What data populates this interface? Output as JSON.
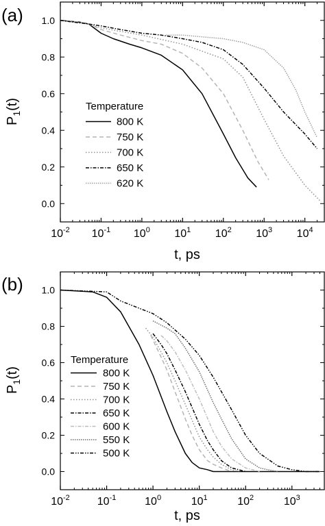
{
  "chart_data": [
    {
      "type": "line",
      "panel_label": "(a)",
      "xlabel": "t, ps",
      "ylabel_main": "P",
      "ylabel_sub": "1",
      "ylabel_tail": "(t)",
      "x_scale": "log",
      "xlim": [
        0.01,
        30000
      ],
      "ylim": [
        -0.1,
        1.1
      ],
      "x_ticks": [
        {
          "value": 0.01,
          "base": "10",
          "exp": "-2"
        },
        {
          "value": 0.1,
          "base": "10",
          "exp": "-1"
        },
        {
          "value": 1,
          "base": "10",
          "exp": "0"
        },
        {
          "value": 10,
          "base": "10",
          "exp": "1"
        },
        {
          "value": 100,
          "base": "10",
          "exp": "2"
        },
        {
          "value": 1000,
          "base": "10",
          "exp": "3"
        },
        {
          "value": 10000,
          "base": "10",
          "exp": "4"
        }
      ],
      "y_ticks": [
        {
          "value": 0.0,
          "label": "0.0"
        },
        {
          "value": 0.2,
          "label": "0.2"
        },
        {
          "value": 0.4,
          "label": "0.4"
        },
        {
          "value": 0.6,
          "label": "0.6"
        },
        {
          "value": 0.8,
          "label": "0.8"
        },
        {
          "value": 1.0,
          "label": "1.0"
        }
      ],
      "grid": false,
      "legend_title": "Temperature",
      "legend_position": "center-left",
      "series": [
        {
          "name": "800 K",
          "color": "#000000",
          "dash": "solid",
          "x": [
            0.01,
            0.03,
            0.05,
            0.1,
            0.2,
            0.5,
            1,
            3,
            10,
            30,
            100,
            200,
            400,
            650
          ],
          "y": [
            1.0,
            0.99,
            0.98,
            0.93,
            0.9,
            0.87,
            0.85,
            0.81,
            0.73,
            0.6,
            0.38,
            0.25,
            0.14,
            0.09
          ]
        },
        {
          "name": "750 K",
          "color": "#b4b4b4",
          "dash": "dash",
          "x": [
            0.01,
            0.03,
            0.05,
            0.1,
            0.3,
            1,
            3,
            10,
            30,
            100,
            300,
            700,
            1300
          ],
          "y": [
            1.0,
            0.99,
            0.98,
            0.95,
            0.92,
            0.89,
            0.87,
            0.82,
            0.74,
            0.6,
            0.4,
            0.23,
            0.13
          ]
        },
        {
          "name": "700 K",
          "color": "#909090",
          "dash": "dot",
          "x": [
            0.01,
            0.05,
            0.1,
            0.3,
            1,
            10,
            100,
            300,
            1000,
            3000,
            10000,
            25000
          ],
          "y": [
            1.0,
            0.98,
            0.96,
            0.94,
            0.92,
            0.87,
            0.79,
            0.69,
            0.46,
            0.26,
            0.1,
            0.01
          ]
        },
        {
          "name": "650 K",
          "color": "#000000",
          "dash": "dashdot",
          "x": [
            0.01,
            0.05,
            0.1,
            0.3,
            1,
            3,
            10,
            30,
            100,
            300,
            1000,
            3000,
            10000,
            20000
          ],
          "y": [
            1.0,
            0.98,
            0.97,
            0.95,
            0.93,
            0.92,
            0.9,
            0.88,
            0.84,
            0.76,
            0.63,
            0.5,
            0.38,
            0.3
          ]
        },
        {
          "name": "620 K",
          "color": "#a0a0a0",
          "dash": "shortdot",
          "x": [
            4,
            10,
            30,
            100,
            300,
            1000,
            3000,
            6000,
            10000,
            20000
          ],
          "y": [
            0.92,
            0.92,
            0.91,
            0.9,
            0.88,
            0.84,
            0.74,
            0.62,
            0.5,
            0.36
          ]
        }
      ]
    },
    {
      "type": "line",
      "panel_label": "(b)",
      "xlabel": "t, ps",
      "ylabel_main": "P",
      "ylabel_sub": "1",
      "ylabel_tail": "(t)",
      "x_scale": "log",
      "xlim": [
        0.01,
        5000
      ],
      "ylim": [
        -0.1,
        1.1
      ],
      "x_ticks": [
        {
          "value": 0.01,
          "base": "10",
          "exp": "-2"
        },
        {
          "value": 0.1,
          "base": "10",
          "exp": "-1"
        },
        {
          "value": 1,
          "base": "10",
          "exp": "0"
        },
        {
          "value": 10,
          "base": "10",
          "exp": "1"
        },
        {
          "value": 100,
          "base": "10",
          "exp": "2"
        },
        {
          "value": 1000,
          "base": "10",
          "exp": "3"
        }
      ],
      "y_ticks": [
        {
          "value": 0.0,
          "label": "0.0"
        },
        {
          "value": 0.2,
          "label": "0.2"
        },
        {
          "value": 0.4,
          "label": "0.4"
        },
        {
          "value": 0.6,
          "label": "0.6"
        },
        {
          "value": 0.8,
          "label": "0.8"
        },
        {
          "value": 1.0,
          "label": "1.0"
        }
      ],
      "grid": false,
      "legend_title": "Temperature",
      "legend_position": "bottom-left",
      "series": [
        {
          "name": "800 K",
          "color": "#000000",
          "dash": "solid",
          "x": [
            0.01,
            0.05,
            0.1,
            0.2,
            0.5,
            1,
            2,
            3,
            5,
            7,
            10,
            15,
            20,
            50,
            100,
            1000,
            4000
          ],
          "y": [
            1.0,
            0.99,
            0.96,
            0.88,
            0.7,
            0.53,
            0.33,
            0.22,
            0.1,
            0.05,
            0.02,
            0.01,
            0.0,
            0.0,
            0.0,
            0.0,
            0.0
          ]
        },
        {
          "name": "750 K",
          "color": "#b4b4b4",
          "dash": "dash",
          "x": [
            0.9,
            1.5,
            2,
            3,
            5,
            7,
            10,
            15,
            20,
            30,
            50
          ],
          "y": [
            0.75,
            0.63,
            0.56,
            0.44,
            0.29,
            0.2,
            0.12,
            0.06,
            0.04,
            0.02,
            0.0
          ]
        },
        {
          "name": "700 K",
          "color": "#909090",
          "dash": "dot",
          "x": [
            0.7,
            1,
            2,
            3,
            5,
            10,
            15,
            20,
            30,
            50,
            70
          ],
          "y": [
            0.79,
            0.74,
            0.6,
            0.5,
            0.37,
            0.19,
            0.12,
            0.08,
            0.04,
            0.01,
            0.0
          ]
        },
        {
          "name": "650 K",
          "color": "#000000",
          "dash": "dashdot",
          "x": [
            1,
            1.5,
            2,
            3,
            5,
            10,
            15,
            20,
            30,
            50,
            100
          ],
          "y": [
            0.76,
            0.7,
            0.65,
            0.56,
            0.44,
            0.26,
            0.17,
            0.12,
            0.06,
            0.02,
            0.0
          ]
        },
        {
          "name": "600 K",
          "color": "#bdbdbd",
          "dash": "dashdot",
          "x": [
            1.5,
            2,
            3,
            5,
            10,
            20,
            30,
            50,
            100,
            200
          ],
          "y": [
            0.75,
            0.72,
            0.66,
            0.56,
            0.4,
            0.22,
            0.14,
            0.07,
            0.02,
            0.0
          ]
        },
        {
          "name": "550 K",
          "color": "#6e6e6e",
          "dash": "shortdot",
          "x": [
            1,
            2,
            3,
            5,
            10,
            20,
            30,
            50,
            100,
            200,
            300,
            500
          ],
          "y": [
            0.83,
            0.79,
            0.76,
            0.68,
            0.55,
            0.38,
            0.29,
            0.18,
            0.07,
            0.02,
            0.01,
            0.0
          ]
        },
        {
          "name": "500 K",
          "color": "#000000",
          "dash": "dashdotdot",
          "x": [
            0.01,
            0.1,
            0.2,
            0.5,
            1,
            2,
            5,
            10,
            20,
            50,
            100,
            200,
            500,
            1000,
            2000,
            4000
          ],
          "y": [
            1.0,
            0.99,
            0.94,
            0.9,
            0.87,
            0.82,
            0.73,
            0.64,
            0.52,
            0.34,
            0.2,
            0.1,
            0.03,
            0.01,
            0.0,
            0.0
          ]
        }
      ]
    }
  ]
}
